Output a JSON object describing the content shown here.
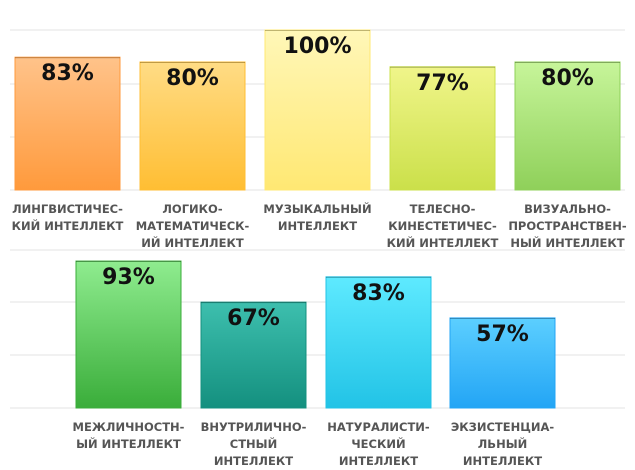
{
  "chart_data": [
    {
      "type": "bar",
      "ylim": [
        0,
        100
      ],
      "grid": true,
      "categories": [
        [
          "ЛИНГВИСТИЧЕС-",
          "КИЙ ИНТЕЛЛЕКТ"
        ],
        [
          "ЛОГИКО-",
          "МАТЕМАТИЧЕСК-",
          "ИЙ ИНТЕЛЛЕКТ"
        ],
        [
          "МУЗЫКАЛЬНЫЙ",
          "ИНТЕЛЛЕКТ"
        ],
        [
          "ТЕЛЕСНО-",
          "КИНЕСТЕТИЧЕС-",
          "КИЙ ИНТЕЛЛЕКТ"
        ],
        [
          "ВИЗУАЛЬНО-",
          "ПРОСТРАНСТВЕН-",
          "НЫЙ ИНТЕЛЛЕКТ"
        ]
      ],
      "values": [
        83,
        80,
        100,
        77,
        80
      ],
      "value_labels": [
        "83%",
        "80%",
        "100%",
        "77%",
        "80%"
      ],
      "colors": [
        [
          "#ffc38a",
          "#ff9a3c"
        ],
        [
          "#ffdc85",
          "#ffbe33"
        ],
        [
          "#fff7b8",
          "#ffe873"
        ],
        [
          "#f0f58a",
          "#cbe04a"
        ],
        [
          "#c7f59a",
          "#8fd05a"
        ]
      ]
    },
    {
      "type": "bar",
      "ylim": [
        0,
        100
      ],
      "grid": true,
      "categories": [
        [
          "МЕЖЛИЧНОСТН-",
          "ЫЙ ИНТЕЛЛЕКТ"
        ],
        [
          "ВНУТРИЛИЧНО-",
          "СТНЫЙ",
          "ИНТЕЛЛЕКТ"
        ],
        [
          "НАТУРАЛИСТИ-",
          "ЧЕСКИЙ",
          "ИНТЕЛЛЕКТ"
        ],
        [
          "ЭКЗИСТЕНЦИА-",
          "ЛЬНЫЙ",
          "ИНТЕЛЛЕКТ"
        ]
      ],
      "values": [
        93,
        67,
        83,
        57
      ],
      "value_labels": [
        "93%",
        "67%",
        "83%",
        "57%"
      ],
      "colors": [
        [
          "#8fec8f",
          "#3aad3a"
        ],
        [
          "#3dbfae",
          "#14907f"
        ],
        [
          "#5eeaff",
          "#22c3e6"
        ],
        [
          "#5ccfff",
          "#23a5f5"
        ]
      ]
    }
  ]
}
